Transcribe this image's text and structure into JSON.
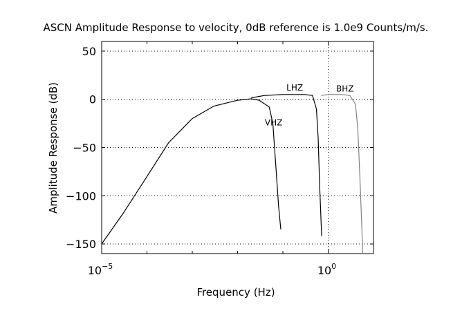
{
  "chart_data": {
    "type": "line",
    "title": "ASCN Amplitude Response to velocity, 0dB reference is 1.0e9 Counts/m/s.",
    "xlabel": "Frequency (Hz)",
    "ylabel": "Amplitude Response (dB)",
    "x_scale": "log",
    "xlim": [
      1e-05,
      10
    ],
    "ylim": [
      -160,
      60
    ],
    "grid": true,
    "x_ticks": [
      {
        "value": 1e-05,
        "base": "10",
        "exp": "−5"
      },
      {
        "value": 1,
        "base": "10",
        "exp": "0"
      }
    ],
    "y_ticks": [
      {
        "value": 50,
        "label": "50"
      },
      {
        "value": 0,
        "label": "0"
      },
      {
        "value": -50,
        "label": "−50"
      },
      {
        "value": -100,
        "label": "−100"
      },
      {
        "value": -150,
        "label": "−150"
      }
    ],
    "series": [
      {
        "name": "VHZ",
        "color": "#000000",
        "label_at": [
          0.04,
          -27
        ],
        "points": [
          [
            1e-05,
            -150
          ],
          [
            3e-05,
            -118
          ],
          [
            0.0001,
            -80
          ],
          [
            0.0003,
            -45
          ],
          [
            0.001,
            -20
          ],
          [
            0.003,
            -7
          ],
          [
            0.01,
            -1
          ],
          [
            0.02,
            0.5
          ],
          [
            0.03,
            -1
          ],
          [
            0.05,
            -8
          ],
          [
            0.06,
            -25
          ],
          [
            0.07,
            -70
          ],
          [
            0.08,
            -110
          ],
          [
            0.09,
            -135
          ]
        ]
      },
      {
        "name": "LHZ",
        "color": "#000000",
        "label_at": [
          0.12,
          9
        ],
        "points": [
          [
            0.02,
            1.5
          ],
          [
            0.04,
            4
          ],
          [
            0.1,
            5
          ],
          [
            0.3,
            5
          ],
          [
            0.45,
            4
          ],
          [
            0.55,
            -10
          ],
          [
            0.6,
            -40
          ],
          [
            0.65,
            -90
          ],
          [
            0.7,
            -130
          ],
          [
            0.72,
            -142
          ]
        ]
      },
      {
        "name": "BHZ",
        "color": "#808080",
        "label_at": [
          1.5,
          8
        ],
        "points": [
          [
            0.7,
            4
          ],
          [
            1,
            5
          ],
          [
            2,
            5
          ],
          [
            3,
            4
          ],
          [
            4,
            -5
          ],
          [
            4.5,
            -30
          ],
          [
            5,
            -80
          ],
          [
            5.5,
            -130
          ],
          [
            5.8,
            -160
          ]
        ]
      }
    ]
  }
}
